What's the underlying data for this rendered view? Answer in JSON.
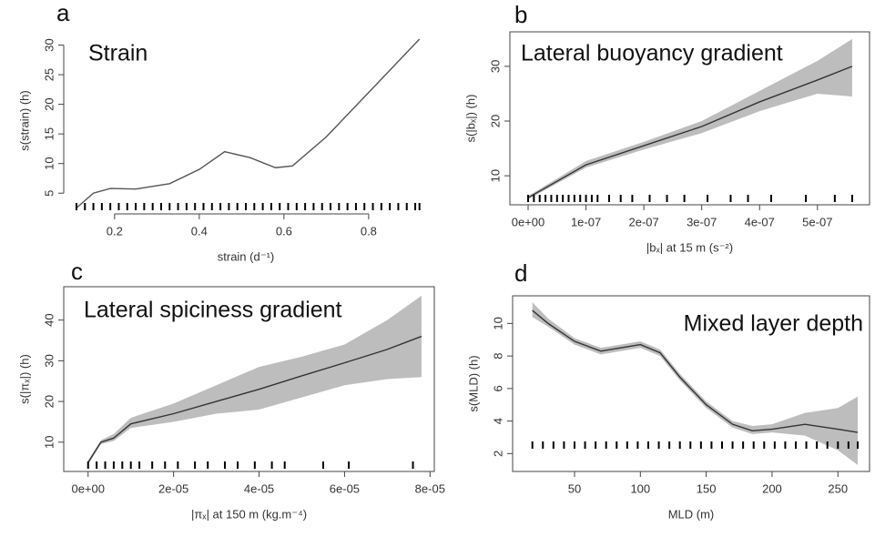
{
  "chart_data": [
    {
      "type": "line",
      "panel": "a",
      "title": "Strain",
      "xlabel": "strain (d⁻¹)",
      "ylabel": "s(strain) (h)",
      "box": false,
      "x": [
        0.11,
        0.15,
        0.19,
        0.25,
        0.33,
        0.4,
        0.46,
        0.52,
        0.58,
        0.62,
        0.7,
        0.8,
        0.92
      ],
      "series": [
        {
          "color": "#555555",
          "values": [
            2.5,
            5,
            5.8,
            5.7,
            6.6,
            9,
            12,
            11,
            9.3,
            9.6,
            14.5,
            22,
            31
          ]
        }
      ],
      "xlim": [
        0.08,
        0.94
      ],
      "xticks": [
        0.2,
        0.4,
        0.6,
        0.8
      ],
      "ylim": [
        1.5,
        33
      ],
      "yticks": [
        5,
        10,
        15,
        20,
        25,
        30
      ],
      "rug": [
        0.11,
        0.13,
        0.15,
        0.17,
        0.19,
        0.21,
        0.23,
        0.25,
        0.27,
        0.29,
        0.31,
        0.33,
        0.35,
        0.37,
        0.39,
        0.41,
        0.43,
        0.45,
        0.47,
        0.49,
        0.51,
        0.53,
        0.55,
        0.57,
        0.59,
        0.61,
        0.63,
        0.65,
        0.67,
        0.69,
        0.71,
        0.73,
        0.75,
        0.77,
        0.79,
        0.81,
        0.83,
        0.85,
        0.87,
        0.89,
        0.91,
        0.92
      ]
    },
    {
      "type": "line",
      "panel": "b",
      "title": "Lateral buoyancy gradient",
      "xlabel": "|bₓ| at 15 m (s⁻²)",
      "ylabel": "s(|bₓ|) (h)",
      "box": true,
      "x": [
        0,
        1e-07,
        2e-07,
        3e-07,
        4e-07,
        5e-07,
        5.6e-07
      ],
      "series": [
        {
          "color": "#333333",
          "band_color": "#bdbdbd",
          "values": [
            6,
            12,
            15.5,
            19,
            23.5,
            27.5,
            30
          ],
          "lower": [
            5.7,
            11.5,
            14.8,
            17.8,
            21.8,
            25,
            24.5
          ],
          "upper": [
            6.3,
            12.7,
            16.2,
            20,
            25.5,
            31,
            35
          ]
        }
      ],
      "xlim": [
        -3.15e-08,
        5.9e-07
      ],
      "xticks": [
        {
          "value": 0,
          "label": "0e+00"
        },
        {
          "value": 1e-07,
          "label": "1e-07"
        },
        {
          "value": 2e-07,
          "label": "2e-07"
        },
        {
          "value": 3e-07,
          "label": "3e-07"
        },
        {
          "value": 4e-07,
          "label": "4e-07"
        },
        {
          "value": 5e-07,
          "label": "5e-07"
        }
      ],
      "ylim": [
        4.7,
        36.3
      ],
      "yticks": [
        10,
        20,
        30
      ],
      "rug": [
        0,
        1e-08,
        2e-08,
        3e-08,
        4e-08,
        5e-08,
        6e-08,
        7e-08,
        8e-08,
        9e-08,
        1e-07,
        1.1e-07,
        1.2e-07,
        1.4e-07,
        1.6e-07,
        1.8e-07,
        2.1e-07,
        2.4e-07,
        2.7e-07,
        3.1e-07,
        3.5e-07,
        3.8e-07,
        4.2e-07,
        4.8e-07,
        5.3e-07,
        5.6e-07
      ]
    },
    {
      "type": "line",
      "panel": "c",
      "title": "Lateral spiciness gradient",
      "xlabel": "|πₓ| at 150 m (kg.m⁻⁴)",
      "ylabel": "s(|πₓ|) (h)",
      "box": true,
      "x": [
        0,
        3e-06,
        6e-06,
        1e-05,
        2e-05,
        3e-05,
        4e-05,
        5e-05,
        6e-05,
        7e-05,
        7.8e-05
      ],
      "series": [
        {
          "color": "#333333",
          "band_color": "#bdbdbd",
          "values": [
            5,
            10,
            11,
            14.5,
            17,
            20,
            23,
            26.3,
            29.5,
            32.8,
            36
          ],
          "lower": [
            4.5,
            9.5,
            10.3,
            13.5,
            15,
            17,
            18,
            21,
            24,
            25.5,
            26
          ],
          "upper": [
            5.5,
            10.5,
            12,
            16,
            19.5,
            24,
            28.5,
            31,
            34,
            40,
            46
          ]
        }
      ],
      "xlim": [
        -5.7e-06,
        8.1e-05
      ],
      "xticks": [
        {
          "value": 0,
          "label": "0e+00"
        },
        {
          "value": 2e-05,
          "label": "2e-05"
        },
        {
          "value": 4e-05,
          "label": "4e-05"
        },
        {
          "value": 6e-05,
          "label": "6e-05"
        },
        {
          "value": 8e-05,
          "label": "8e-05"
        }
      ],
      "ylim": [
        2.8,
        48.2
      ],
      "yticks": [
        10,
        20,
        30,
        40
      ],
      "rug": [
        0,
        2e-06,
        4e-06,
        6e-06,
        8e-06,
        1e-05,
        1.2e-05,
        1.5e-05,
        1.8e-05,
        2.1e-05,
        2.5e-05,
        2.8e-05,
        3.2e-05,
        3.5e-05,
        3.9e-05,
        4.3e-05,
        4.6e-05,
        5.5e-05,
        6.1e-05,
        7.6e-05
      ]
    },
    {
      "type": "line",
      "panel": "d",
      "title": "Mixed layer depth",
      "xlabel": "MLD (m)",
      "ylabel": "s(MLD) (h)",
      "box": true,
      "x": [
        18,
        30,
        50,
        70,
        85,
        100,
        115,
        130,
        150,
        170,
        185,
        200,
        225,
        250,
        265
      ],
      "series": [
        {
          "color": "#333333",
          "band_color": "#bdbdbd",
          "values": [
            10.8,
            10,
            8.9,
            8.3,
            8.5,
            8.7,
            8.2,
            6.7,
            5,
            3.8,
            3.4,
            3.5,
            3.8,
            3.5,
            3.3
          ],
          "lower": [
            10.4,
            9.8,
            8.7,
            8.1,
            8.3,
            8.5,
            8,
            6.5,
            4.8,
            3.6,
            3.2,
            3.3,
            3.1,
            2.2,
            1.3
          ],
          "upper": [
            11.3,
            10.3,
            9.1,
            8.5,
            8.7,
            8.9,
            8.4,
            6.9,
            5.2,
            4,
            3.7,
            3.8,
            4.5,
            4.8,
            5.5
          ]
        }
      ],
      "xlim": [
        3,
        274
      ],
      "xticks": [
        50,
        100,
        150,
        200,
        250
      ],
      "ylim": [
        0.9,
        11.7
      ],
      "yticks": [
        2,
        4,
        6,
        8,
        10
      ],
      "rug": [
        18,
        26,
        34,
        42,
        50,
        58,
        66,
        74,
        82,
        90,
        98,
        106,
        114,
        122,
        130,
        138,
        146,
        154,
        162,
        170,
        178,
        186,
        194,
        202,
        210,
        218,
        226,
        234,
        242,
        250,
        258,
        265
      ]
    }
  ]
}
